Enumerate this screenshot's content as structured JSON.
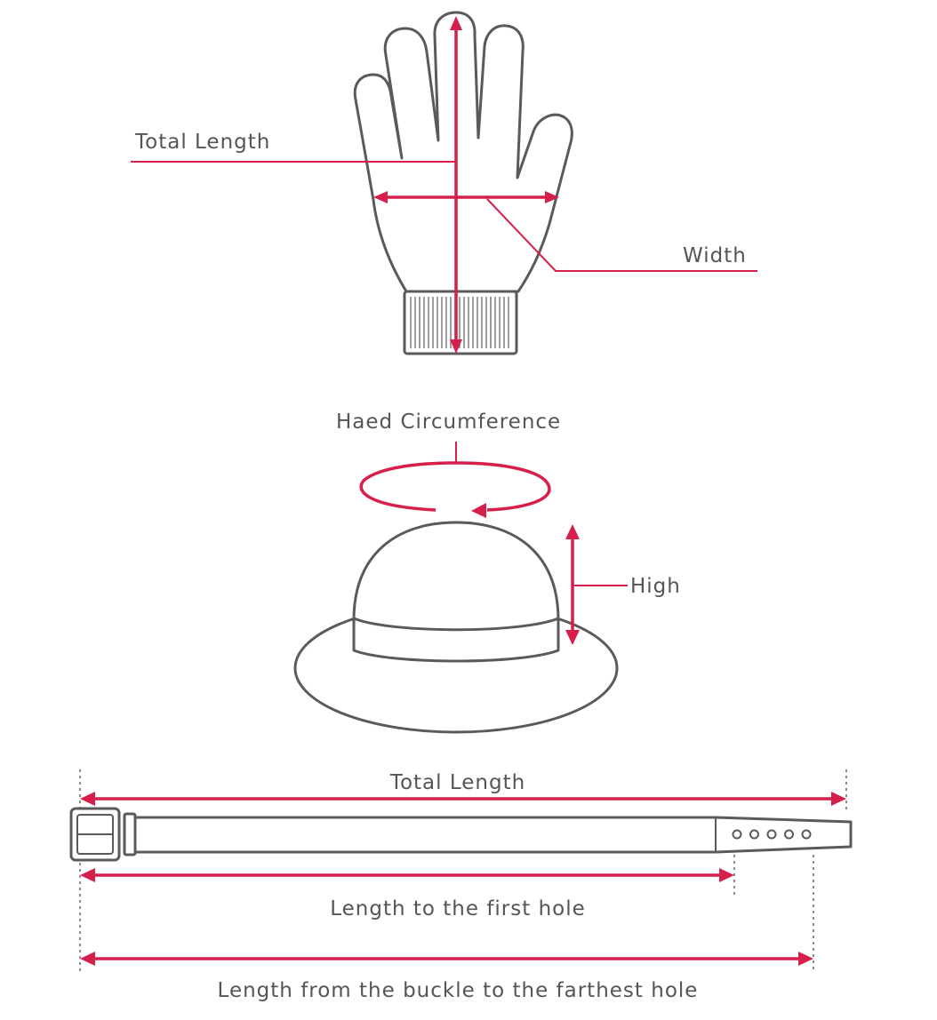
{
  "colors": {
    "accent": "#d6204b",
    "outline": "#5a5a5a",
    "text": "#555555",
    "background": "#ffffff"
  },
  "glove": {
    "total_length_label": "Total Length",
    "width_label": "Width"
  },
  "hat": {
    "circumference_label": "Haed Circumference",
    "height_label": "High"
  },
  "belt": {
    "total_length_label": "Total Length",
    "first_hole_label": "Length to the first hole",
    "farthest_hole_label": "Length from the buckle to the farthest hole",
    "hole_count": 5
  }
}
